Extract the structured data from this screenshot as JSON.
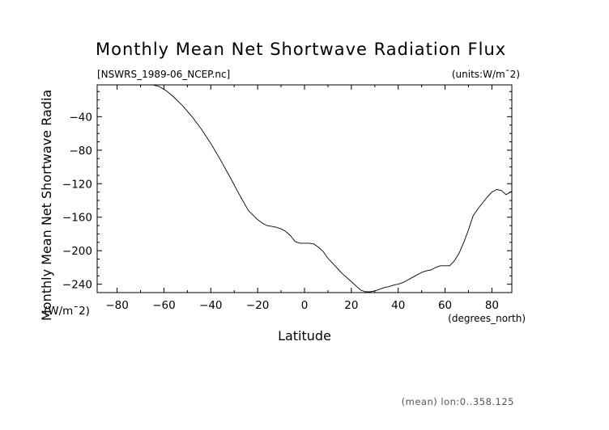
{
  "chart_data": {
    "type": "line",
    "title": "Monthly Mean Net Shortwave Radiation Flux",
    "source_label": "[NSWRS_1989-06_NCEP.nc]",
    "units_label": "(units:W/m¯2)",
    "ylabel_line1": "Monthly Mean Net Shortwave Radia",
    "ylabel_line2": "(W/m¯2)",
    "xlabel": "Latitude",
    "x_units_label": "(degrees_north)",
    "footer": "(mean) lon:0..358.125",
    "xlim": [
      -88.5,
      88.5
    ],
    "ylim": [
      -250,
      -2
    ],
    "x_ticks": [
      -80,
      -60,
      -40,
      -20,
      0,
      20,
      40,
      60,
      80
    ],
    "y_ticks": [
      -240,
      -200,
      -160,
      -120,
      -80,
      -40
    ],
    "grid": false,
    "series": [
      {
        "x": [
          -64.8,
          -62,
          -59,
          -56,
          -52,
          -48,
          -44,
          -40,
          -36,
          -32,
          -28,
          -24,
          -20,
          -18,
          -16,
          -14,
          -12,
          -10,
          -8,
          -6,
          -4,
          -2,
          0,
          2,
          4,
          6,
          8,
          10,
          12,
          14,
          16,
          18,
          20,
          22,
          24,
          26,
          28,
          30,
          32,
          34,
          36,
          38,
          40,
          42,
          44,
          46,
          48,
          50,
          52,
          54,
          56,
          58,
          60,
          62,
          64,
          66,
          68,
          70,
          72,
          74,
          76,
          78,
          80,
          82,
          84,
          86,
          88.5
        ],
        "values": [
          -2,
          -4,
          -9,
          -16,
          -27,
          -40,
          -55,
          -72,
          -91,
          -111,
          -132,
          -152,
          -163,
          -167,
          -170,
          -171,
          -172,
          -174,
          -177,
          -182,
          -189,
          -191,
          -191,
          -191,
          -192,
          -196,
          -201,
          -209,
          -215,
          -221,
          -227,
          -232,
          -237,
          -242,
          -247,
          -249,
          -249,
          -248,
          -246,
          -244,
          -243,
          -241,
          -240,
          -238,
          -235,
          -232,
          -229,
          -226,
          -224,
          -223,
          -220,
          -218,
          -218,
          -218,
          -212,
          -203,
          -190,
          -175,
          -158,
          -150,
          -143,
          -136,
          -130,
          -127,
          -128,
          -133,
          -129
        ]
      }
    ]
  }
}
